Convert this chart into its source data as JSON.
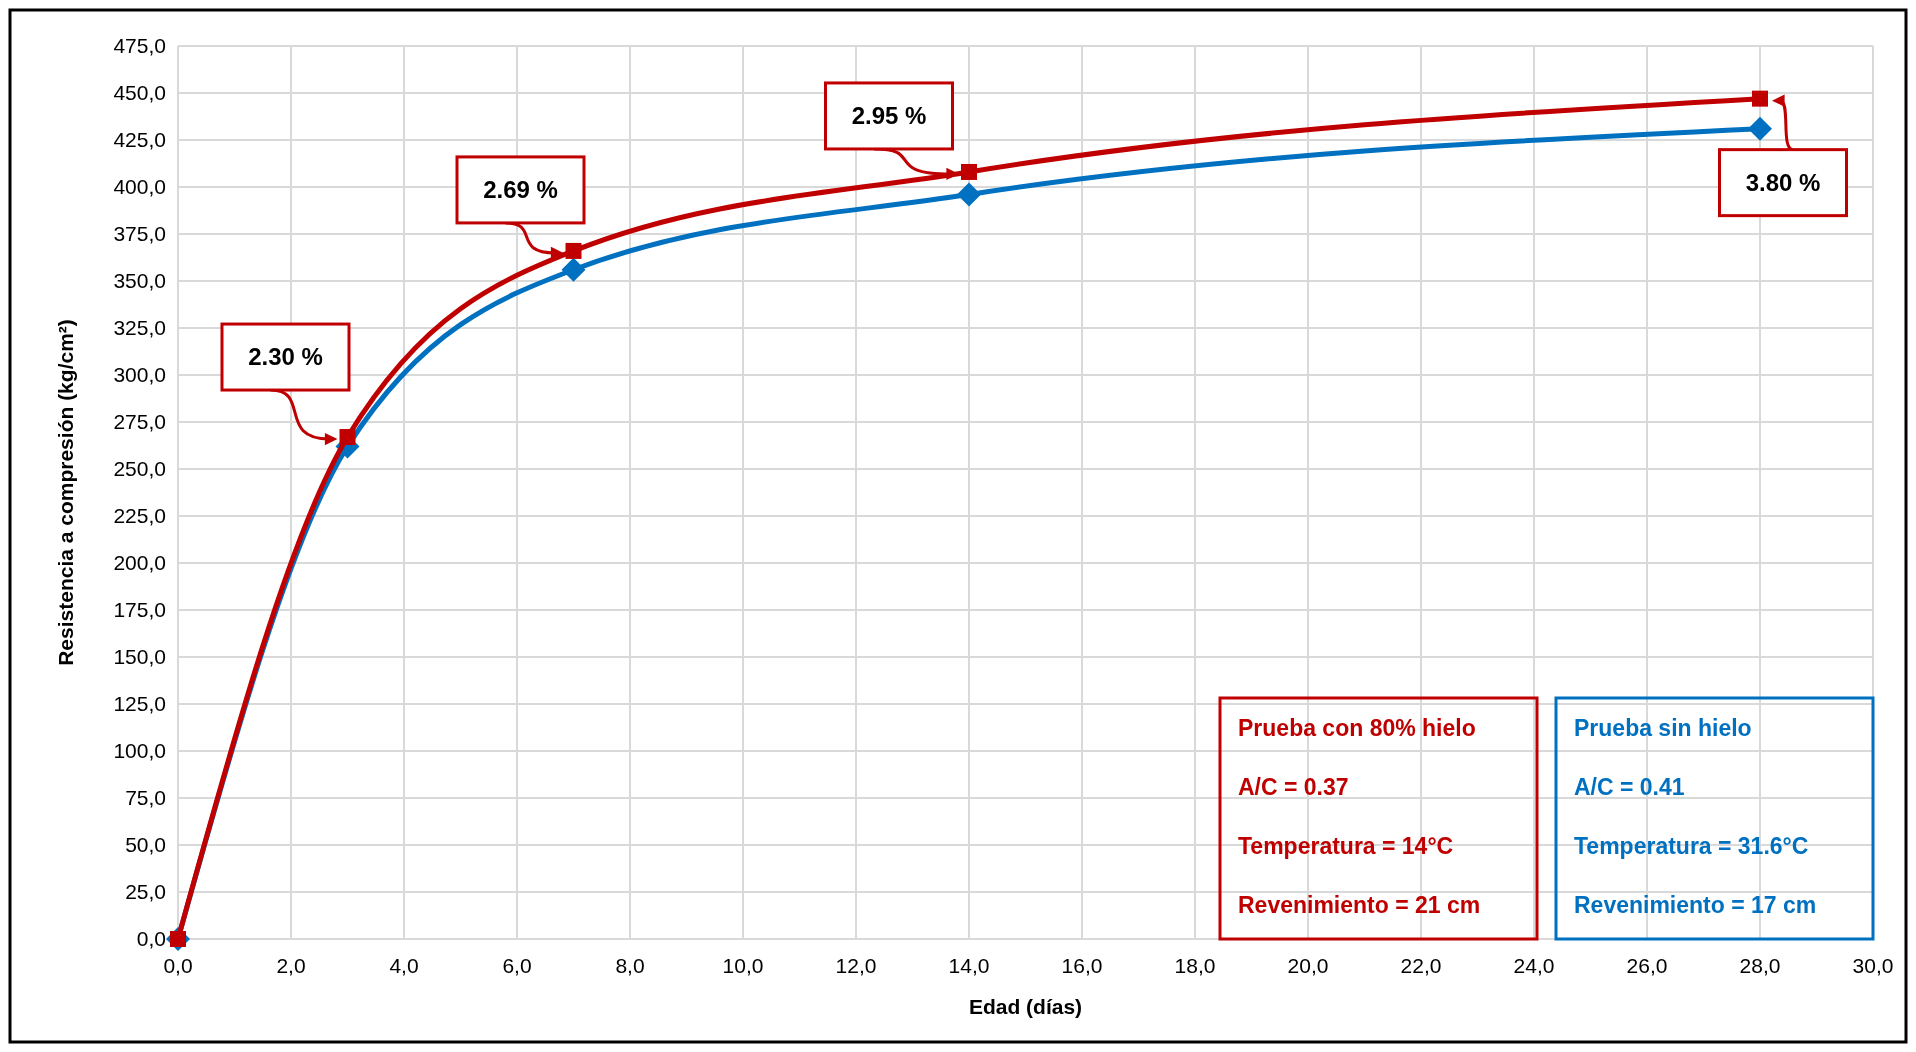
{
  "chart_data": {
    "type": "line",
    "xlabel": "Edad (días)",
    "ylabel": "Resistencia a compresión  (kg/cm²)",
    "xlim": [
      0,
      30
    ],
    "ylim": [
      0,
      475
    ],
    "xticks": [
      {
        "value": 0,
        "label": "0,0"
      },
      {
        "value": 2,
        "label": "2,0"
      },
      {
        "value": 4,
        "label": "4,0"
      },
      {
        "value": 6,
        "label": "6,0"
      },
      {
        "value": 8,
        "label": "8,0"
      },
      {
        "value": 10,
        "label": "10,0"
      },
      {
        "value": 12,
        "label": "12,0"
      },
      {
        "value": 14,
        "label": "14,0"
      },
      {
        "value": 16,
        "label": "16,0"
      },
      {
        "value": 18,
        "label": "18,0"
      },
      {
        "value": 20,
        "label": "20,0"
      },
      {
        "value": 22,
        "label": "22,0"
      },
      {
        "value": 24,
        "label": "24,0"
      },
      {
        "value": 26,
        "label": "26,0"
      },
      {
        "value": 28,
        "label": "28,0"
      },
      {
        "value": 30,
        "label": "30,0"
      }
    ],
    "yticks": [
      {
        "value": 0,
        "label": "0,0"
      },
      {
        "value": 25,
        "label": "25,0"
      },
      {
        "value": 50,
        "label": "50,0"
      },
      {
        "value": 75,
        "label": "75,0"
      },
      {
        "value": 100,
        "label": "100,0"
      },
      {
        "value": 125,
        "label": "125,0"
      },
      {
        "value": 150,
        "label": "150,0"
      },
      {
        "value": 175,
        "label": "175,0"
      },
      {
        "value": 200,
        "label": "200,0"
      },
      {
        "value": 225,
        "label": "225,0"
      },
      {
        "value": 250,
        "label": "250,0"
      },
      {
        "value": 275,
        "label": "275,0"
      },
      {
        "value": 300,
        "label": "300,0"
      },
      {
        "value": 325,
        "label": "325,0"
      },
      {
        "value": 350,
        "label": "350,0"
      },
      {
        "value": 375,
        "label": "375,0"
      },
      {
        "value": 400,
        "label": "400,0"
      },
      {
        "value": 425,
        "label": "425,0"
      },
      {
        "value": 450,
        "label": "450,0"
      },
      {
        "value": 475,
        "label": "475,0"
      }
    ],
    "x": [
      0,
      3,
      7,
      14,
      28
    ],
    "series": [
      {
        "name": "Prueba con 80% hielo",
        "color": "#c00000",
        "values": [
          0,
          267,
          366,
          408,
          447
        ],
        "marker": "square"
      },
      {
        "name": "Prueba sin hielo",
        "color": "#0070c0",
        "values": [
          0,
          262,
          356,
          396,
          431
        ],
        "marker": "diamond"
      }
    ],
    "grid": true,
    "legend": "bottom right",
    "line_style": "solid",
    "annotations": [
      {
        "text": "2.30 %",
        "x": 3,
        "y": 267
      },
      {
        "text": "2.69 %",
        "x": 7,
        "y": 366
      },
      {
        "text": "2.95 %",
        "x": 14,
        "y": 408
      },
      {
        "text": "3.80 %",
        "x": 28,
        "y": 447
      },
      "A/C = 0.37",
      "Temperatura = 14°C",
      "Revenimiento = 21 cm",
      "A/C = 0.41",
      "Temperatura = 31.6°C",
      "Revenimiento = 17 cm"
    ]
  }
}
